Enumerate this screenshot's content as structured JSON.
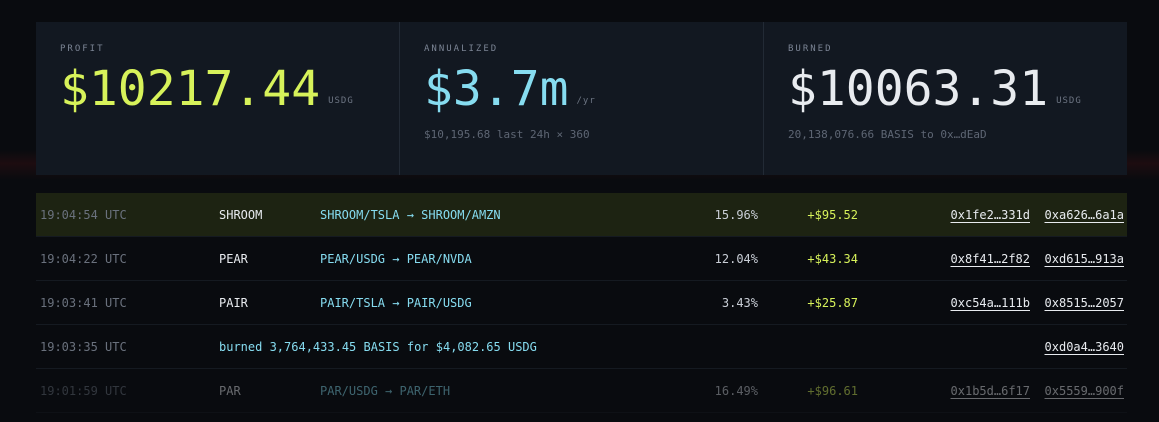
{
  "colors": {
    "background": "#090b0f",
    "panel": "#121821",
    "accent_green": "#d7f25a",
    "accent_cyan": "#86dcf0",
    "highlight_row": "#1d2312"
  },
  "stats": {
    "profit": {
      "label": "PROFIT",
      "value": "$10217.44",
      "unit": "USDG"
    },
    "annualized": {
      "label": "ANNUALIZED",
      "value": "$3.7m",
      "unit": "/yr",
      "sub": "$10,195.68 last 24h × 360"
    },
    "burned": {
      "label": "BURNED",
      "value": "$10063.31",
      "unit": "USDG",
      "sub": "20,138,076.66 BASIS to 0x…dEaD"
    }
  },
  "feed": [
    {
      "time": "19:04:54 UTC",
      "token": "SHROOM",
      "route": "SHROOM/TSLA → SHROOM/AMZN",
      "pct": "15.96%",
      "profit": "+$95.52",
      "tx1": "0x1fe2…331d",
      "tx2": "0xa626…6a1a"
    },
    {
      "time": "19:04:22 UTC",
      "token": "PEAR",
      "route": "PEAR/USDG → PEAR/NVDA",
      "pct": "12.04%",
      "profit": "+$43.34",
      "tx1": "0x8f41…2f82",
      "tx2": "0xd615…913a"
    },
    {
      "time": "19:03:41 UTC",
      "token": "PAIR",
      "route": "PAIR/TSLA → PAIR/USDG",
      "pct": "3.43%",
      "profit": "+$25.87",
      "tx1": "0xc54a…111b",
      "tx2": "0x8515…2057"
    },
    {
      "time": "19:03:35 UTC",
      "burn_text": "burned 3,764,433.45 BASIS for $4,082.65 USDG",
      "tx2": "0xd0a4…3640"
    },
    {
      "time": "19:01:59 UTC",
      "token": "PAR",
      "route": "PAR/USDG → PAR/ETH",
      "pct": "16.49%",
      "profit": "+$96.61",
      "tx1": "0x1b5d…6f17",
      "tx2": "0x5559…900f"
    }
  ]
}
